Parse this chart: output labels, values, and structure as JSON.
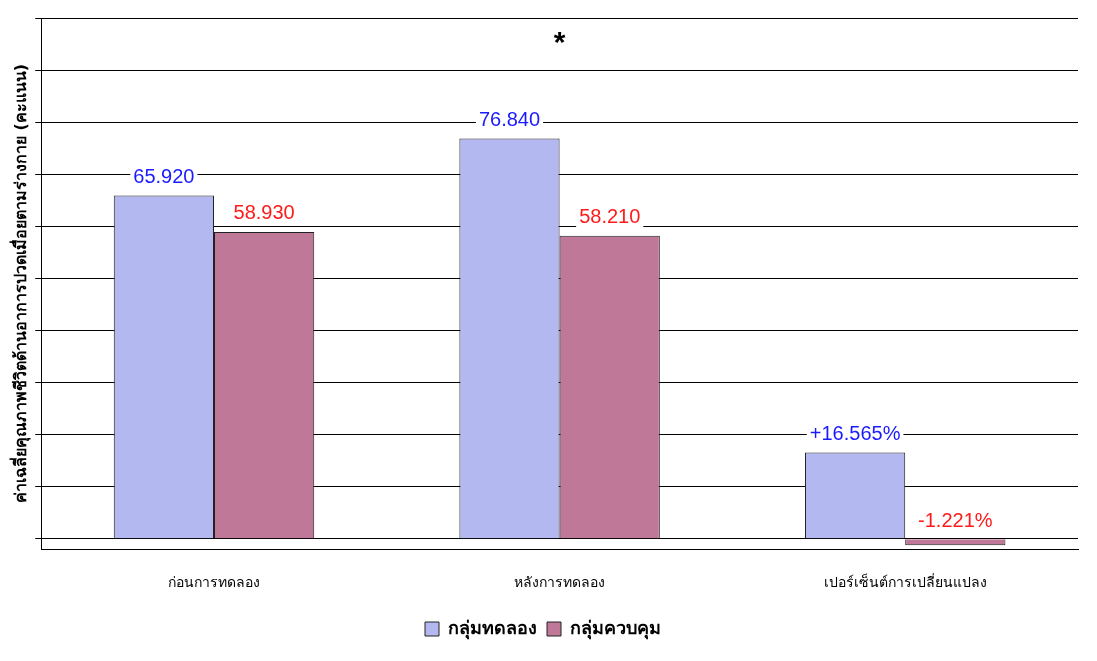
{
  "chart_data": {
    "type": "bar",
    "ylabel": "ค่าเฉลี่ยคุณภาพชีวิตด้านอาการปวดเมื่อยตามร่างกาย (คะแนน)",
    "categories": [
      "ก่อนการทดลอง",
      "หลังการทดลอง",
      "เปอร์เซ็นต์การเปลี่ยนแปลง"
    ],
    "series": [
      {
        "name": "กลุ่มทดลอง",
        "color": "#b4b8f0",
        "values": [
          65.92,
          76.84,
          16.565
        ],
        "value_labels": [
          "65.920",
          "76.840",
          "+16.565%"
        ]
      },
      {
        "name": "กลุ่มควบคุม",
        "color": "#c07898",
        "values": [
          58.93,
          58.21,
          -1.221
        ],
        "value_labels": [
          "58.930",
          "58.210",
          "-1.221%"
        ]
      }
    ],
    "ylim": [
      -2,
      100
    ],
    "yticks": [
      {
        "value": 0,
        "label": null
      },
      {
        "value": 10,
        "label": null
      },
      {
        "value": 20,
        "label": null
      },
      {
        "value": 30,
        "label": null
      },
      {
        "value": 40,
        "label": null
      },
      {
        "value": 50,
        "label": null
      },
      {
        "value": 60,
        "label": null
      },
      {
        "value": 70,
        "label": null
      },
      {
        "value": 80,
        "label": null
      },
      {
        "value": 90,
        "label": null
      },
      {
        "value": 100,
        "label": null
      }
    ],
    "tick_labels": "x",
    "grid": "y",
    "legend": "bottom",
    "annotations": [
      "*"
    ]
  }
}
